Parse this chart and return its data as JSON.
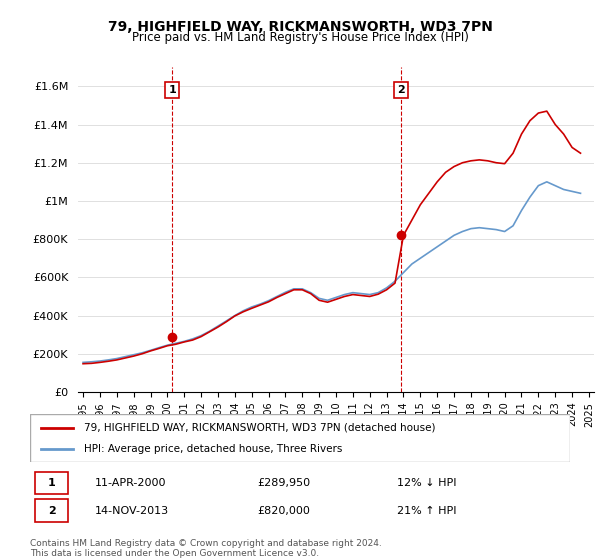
{
  "title": "79, HIGHFIELD WAY, RICKMANSWORTH, WD3 7PN",
  "subtitle": "Price paid vs. HM Land Registry's House Price Index (HPI)",
  "xlabel": "",
  "ylabel": "",
  "ylim": [
    0,
    1700000
  ],
  "yticks": [
    0,
    200000,
    400000,
    600000,
    800000,
    1000000,
    1200000,
    1400000,
    1600000
  ],
  "ytick_labels": [
    "£0",
    "£200K",
    "£400K",
    "£600K",
    "£800K",
    "£1M",
    "£1.2M",
    "£1.4M",
    "£1.6M"
  ],
  "background_color": "#ffffff",
  "grid_color": "#e0e0e0",
  "sale1_year": 2000.28,
  "sale1_price": 289950,
  "sale1_label": "1",
  "sale1_date": "11-APR-2000",
  "sale1_hpi_diff": "12% ↓ HPI",
  "sale2_year": 2013.87,
  "sale2_price": 820000,
  "sale2_label": "2",
  "sale2_date": "14-NOV-2013",
  "sale2_hpi_diff": "21% ↑ HPI",
  "red_line_color": "#cc0000",
  "blue_line_color": "#6699cc",
  "vline_color": "#cc0000",
  "sale_marker_color": "#cc0000",
  "legend_label_red": "79, HIGHFIELD WAY, RICKMANSWORTH, WD3 7PN (detached house)",
  "legend_label_blue": "HPI: Average price, detached house, Three Rivers",
  "footer_text": "Contains HM Land Registry data © Crown copyright and database right 2024.\nThis data is licensed under the Open Government Licence v3.0.",
  "hpi_data": {
    "years": [
      1995,
      1995.5,
      1996,
      1996.5,
      1997,
      1997.5,
      1998,
      1998.5,
      1999,
      1999.5,
      2000,
      2000.5,
      2001,
      2001.5,
      2002,
      2002.5,
      2003,
      2003.5,
      2004,
      2004.5,
      2005,
      2005.5,
      2006,
      2006.5,
      2007,
      2007.5,
      2008,
      2008.5,
      2009,
      2009.5,
      2010,
      2010.5,
      2011,
      2011.5,
      2012,
      2012.5,
      2013,
      2013.5,
      2014,
      2014.5,
      2015,
      2015.5,
      2016,
      2016.5,
      2017,
      2017.5,
      2018,
      2018.5,
      2019,
      2019.5,
      2020,
      2020.5,
      2021,
      2021.5,
      2022,
      2022.5,
      2023,
      2023.5,
      2024,
      2024.5
    ],
    "hpi_values": [
      155000,
      158000,
      162000,
      168000,
      175000,
      185000,
      195000,
      205000,
      218000,
      232000,
      245000,
      255000,
      265000,
      278000,
      295000,
      318000,
      345000,
      372000,
      400000,
      425000,
      445000,
      460000,
      478000,
      500000,
      522000,
      540000,
      540000,
      520000,
      490000,
      480000,
      495000,
      510000,
      520000,
      515000,
      510000,
      520000,
      545000,
      580000,
      625000,
      670000,
      700000,
      730000,
      760000,
      790000,
      820000,
      840000,
      855000,
      860000,
      855000,
      850000,
      840000,
      870000,
      950000,
      1020000,
      1080000,
      1100000,
      1080000,
      1060000,
      1050000,
      1040000
    ],
    "price_values": [
      148000,
      150000,
      155000,
      161000,
      168000,
      178000,
      188000,
      200000,
      215000,
      228000,
      242000,
      250000,
      262000,
      272000,
      290000,
      315000,
      340000,
      368000,
      398000,
      420000,
      438000,
      455000,
      472000,
      495000,
      515000,
      535000,
      535000,
      515000,
      480000,
      470000,
      485000,
      500000,
      510000,
      505000,
      500000,
      512000,
      535000,
      570000,
      820000,
      900000,
      980000,
      1040000,
      1100000,
      1150000,
      1180000,
      1200000,
      1210000,
      1215000,
      1210000,
      1200000,
      1195000,
      1250000,
      1350000,
      1420000,
      1460000,
      1470000,
      1400000,
      1350000,
      1280000,
      1250000
    ]
  },
  "xtick_years": [
    1995,
    1996,
    1997,
    1998,
    1999,
    2000,
    2001,
    2002,
    2003,
    2004,
    2005,
    2006,
    2007,
    2008,
    2009,
    2010,
    2011,
    2012,
    2013,
    2014,
    2015,
    2016,
    2017,
    2018,
    2019,
    2020,
    2021,
    2022,
    2023,
    2024,
    2025
  ]
}
